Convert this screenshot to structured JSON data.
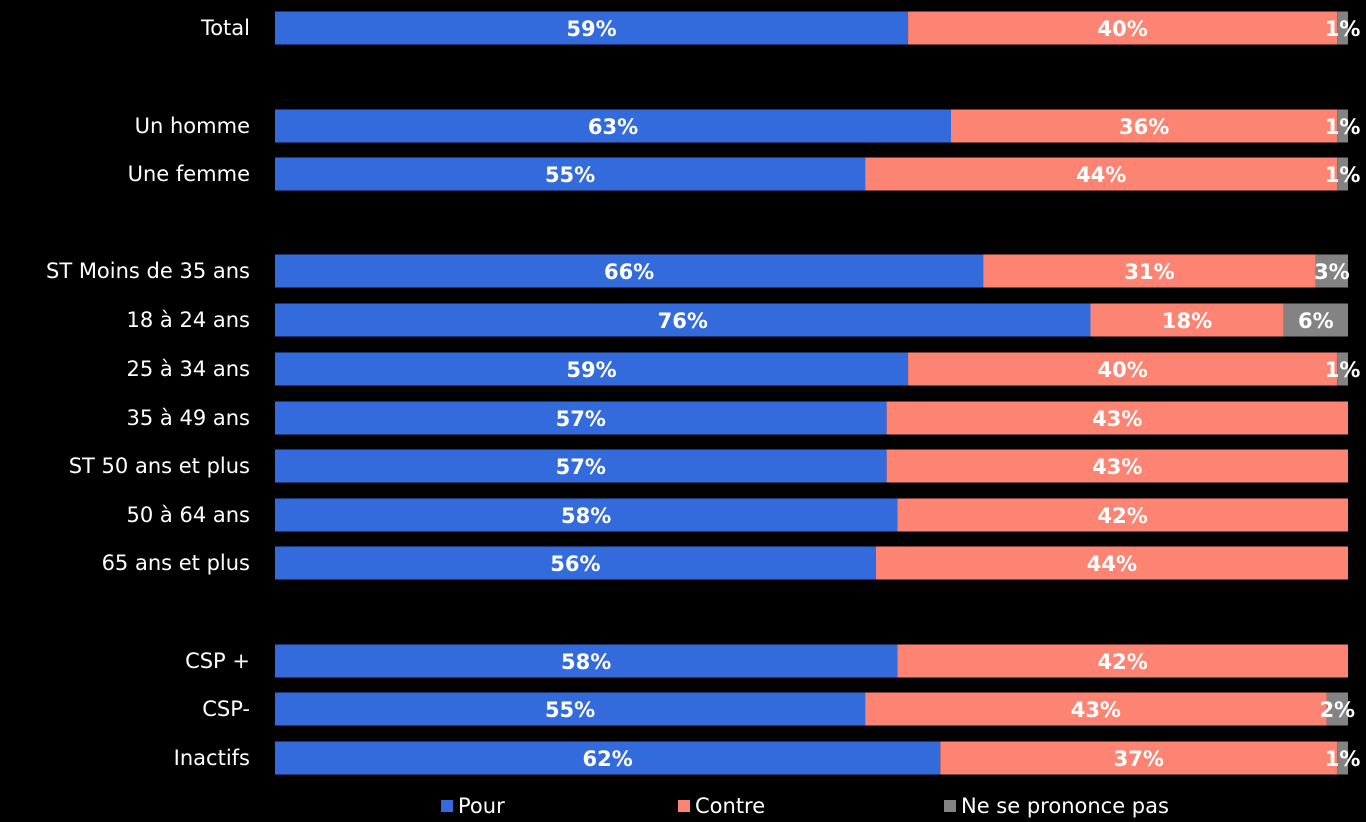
{
  "chart_data": {
    "type": "bar",
    "orientation": "horizontal",
    "stacked": true,
    "percent_stacked": true,
    "categories": [
      "Total",
      "Un homme",
      "Une femme",
      "ST Moins de 35 ans",
      "18 à 24 ans",
      "25 à 34 ans",
      "35 à 49 ans",
      "ST 50 ans et plus",
      "50 à 64 ans",
      "65 ans et plus",
      "CSP +",
      "CSP-",
      "Inactifs"
    ],
    "series": [
      {
        "name": "Pour",
        "color": "#336bdd",
        "values": [
          59,
          63,
          55,
          66,
          76,
          59,
          57,
          57,
          58,
          56,
          58,
          55,
          62
        ],
        "labels": [
          "59%",
          "63%",
          "55%",
          "66%",
          "76%",
          "59%",
          "57%",
          "57%",
          "58%",
          "56%",
          "58%",
          "55%",
          "62%"
        ]
      },
      {
        "name": "Contre",
        "color": "#fd8472",
        "values": [
          40,
          36,
          44,
          31,
          18,
          40,
          43,
          43,
          42,
          44,
          42,
          43,
          37
        ],
        "labels": [
          "40%",
          "36%",
          "44%",
          "31%",
          "18%",
          "40%",
          "43%",
          "43%",
          "42%",
          "44%",
          "42%",
          "43%",
          "37%"
        ]
      },
      {
        "name": "Ne se prononce pas",
        "color": "#838383",
        "values": [
          1,
          1,
          1,
          3,
          6,
          1,
          0,
          0,
          0,
          0,
          0,
          2,
          1
        ],
        "labels": [
          "1%",
          "1%",
          "1%",
          "3%",
          "6%",
          "1%",
          "",
          "",
          "",
          "",
          "",
          "2%",
          "1%"
        ]
      }
    ],
    "xlim": [
      0,
      100
    ],
    "grid": false,
    "legend_position": "bottom"
  }
}
